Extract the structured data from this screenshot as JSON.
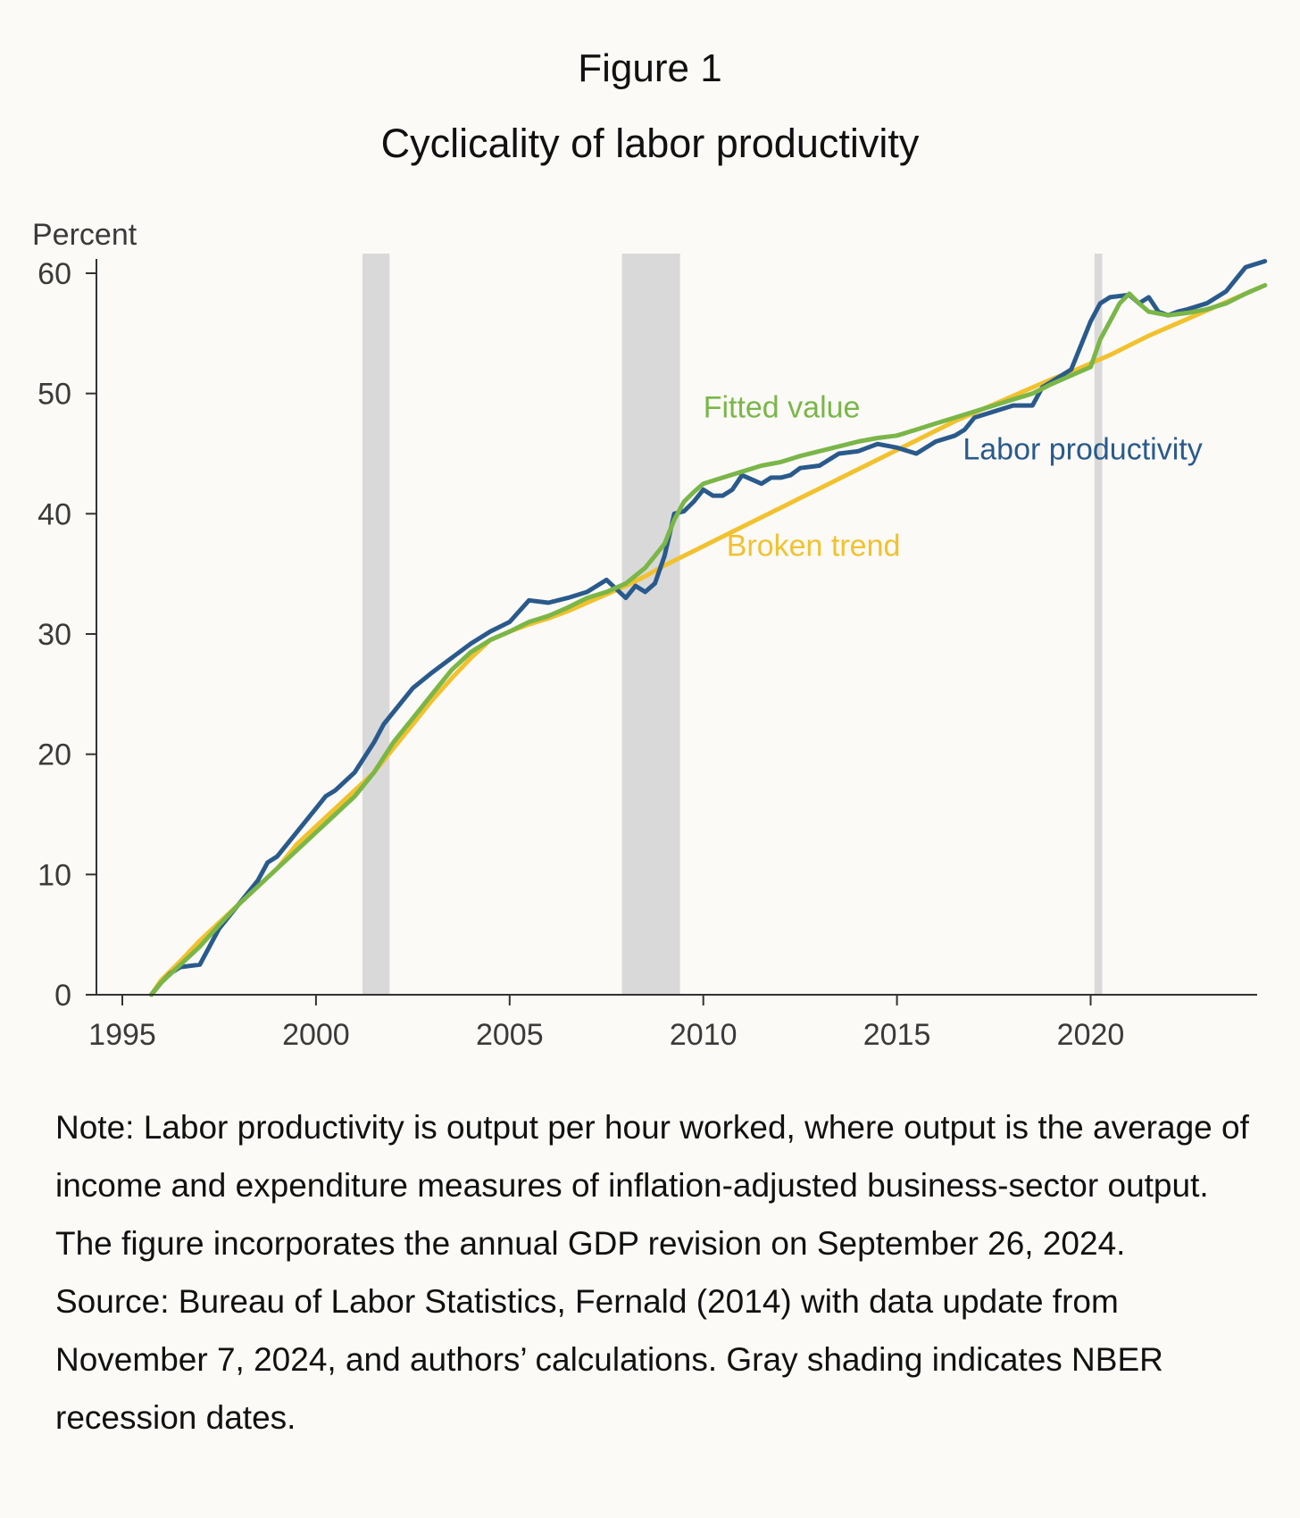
{
  "figure_label": "Figure 1",
  "title": "Cyclicality of labor productivity",
  "note": "Note: Labor productivity is output per hour worked, where output is the average of income and expenditure measures of inflation-adjusted business-sector output. The figure incorporates the annual GDP revision on September 26, 2024.",
  "source": "Source: Bureau of Labor Statistics, Fernald (2014) with data update from November 7, 2024, and authors’ calculations. Gray shading indicates NBER recession dates.",
  "colors": {
    "labor_productivity": "#2a5a8c",
    "fitted_value": "#7ab648",
    "broken_trend": "#f2c12e",
    "recession_shading": "#d9d9d9",
    "axis": "#333333"
  },
  "chart_data": {
    "type": "line",
    "title": "Cyclicality of labor productivity",
    "ylabel": "Percent",
    "xlabel": "",
    "xlim": [
      1995,
      2024.7
    ],
    "ylim": [
      0,
      62
    ],
    "x_ticks": [
      1995,
      2000,
      2005,
      2010,
      2015,
      2020
    ],
    "y_ticks": [
      0,
      10,
      20,
      30,
      40,
      50,
      60
    ],
    "grid": false,
    "legend": "inline labels",
    "recessions": [
      {
        "start": 2001.2,
        "end": 2001.9
      },
      {
        "start": 2007.9,
        "end": 2009.4
      },
      {
        "start": 2020.1,
        "end": 2020.3
      }
    ],
    "series": [
      {
        "name": "Labor productivity",
        "label_anchor": [
          2016.7,
          44.5
        ],
        "x": [
          1995.75,
          1996,
          1996.25,
          1996.5,
          1997,
          1997.25,
          1997.5,
          1998,
          1998.5,
          1998.75,
          1999,
          1999.5,
          2000,
          2000.25,
          2000.5,
          2001,
          2001.5,
          2001.75,
          2002,
          2002.5,
          2003,
          2003.5,
          2004,
          2004.5,
          2005,
          2005.5,
          2006,
          2006.5,
          2007,
          2007.5,
          2008,
          2008.25,
          2008.5,
          2008.75,
          2009,
          2009.25,
          2009.5,
          2009.75,
          2010,
          2010.25,
          2010.5,
          2010.75,
          2011,
          2011.5,
          2011.75,
          2012,
          2012.25,
          2012.5,
          2013,
          2013.5,
          2014,
          2014.5,
          2015,
          2015.5,
          2016,
          2016.5,
          2016.75,
          2017,
          2017.5,
          2018,
          2018.5,
          2018.75,
          2019,
          2019.5,
          2020,
          2020.25,
          2020.5,
          2021,
          2021.25,
          2021.5,
          2021.75,
          2022,
          2022.25,
          2022.5,
          2023,
          2023.5,
          2023.75,
          2024,
          2024.5
        ],
        "y": [
          0,
          1,
          1.8,
          2.3,
          2.5,
          4,
          5.5,
          7.5,
          9.5,
          11,
          11.5,
          13.5,
          15.5,
          16.5,
          17,
          18.5,
          21,
          22.5,
          23.5,
          25.5,
          26.8,
          28,
          29.2,
          30.2,
          31,
          32.8,
          32.6,
          33,
          33.5,
          34.5,
          33,
          34,
          33.5,
          34.2,
          36.5,
          40,
          40.2,
          41,
          42,
          41.5,
          41.5,
          42,
          43.2,
          42.5,
          43,
          43,
          43.2,
          43.8,
          44,
          45,
          45.2,
          45.8,
          45.5,
          45,
          46,
          46.5,
          47,
          48,
          48.5,
          49,
          49,
          50.5,
          51,
          52,
          56,
          57.5,
          58,
          58.2,
          57.5,
          58,
          56.8,
          56.5,
          56.8,
          57,
          57.5,
          58.5,
          59.5,
          60.5,
          61
        ]
      },
      {
        "name": "Fitted value",
        "label_anchor": [
          2010,
          48
        ],
        "x": [
          1995.75,
          1996,
          1996.5,
          1997,
          1997.5,
          1998,
          1998.5,
          1999,
          1999.5,
          2000,
          2000.5,
          2001,
          2001.5,
          2002,
          2002.5,
          2003,
          2003.5,
          2004,
          2004.5,
          2005,
          2005.5,
          2006,
          2006.5,
          2007,
          2007.5,
          2008,
          2008.5,
          2008.75,
          2009,
          2009.25,
          2009.5,
          2009.75,
          2010,
          2010.5,
          2011,
          2011.5,
          2012,
          2012.5,
          2013,
          2013.5,
          2014,
          2014.5,
          2015,
          2015.5,
          2016,
          2016.5,
          2017,
          2017.5,
          2018,
          2018.5,
          2019,
          2019.5,
          2020,
          2020.25,
          2020.5,
          2020.75,
          2021,
          2021.25,
          2021.5,
          2022,
          2022.5,
          2023,
          2023.5,
          2024,
          2024.5
        ],
        "y": [
          0,
          1,
          2.5,
          4,
          5.8,
          7.5,
          9,
          10.5,
          12,
          13.5,
          15,
          16.5,
          18.5,
          21,
          23,
          25,
          27,
          28.5,
          29.5,
          30.2,
          31,
          31.5,
          32.2,
          33,
          33.5,
          34.2,
          35.5,
          36.5,
          37.5,
          39.5,
          41,
          41.8,
          42.5,
          43,
          43.5,
          44,
          44.3,
          44.8,
          45.2,
          45.6,
          46,
          46.3,
          46.5,
          47,
          47.5,
          48,
          48.5,
          49,
          49.5,
          50,
          50.8,
          51.5,
          52.2,
          54.5,
          56,
          57.5,
          58.3,
          57.5,
          56.8,
          56.5,
          56.7,
          57,
          57.5,
          58.3,
          59
        ]
      },
      {
        "name": "Broken trend",
        "label_anchor": [
          2010.6,
          36.5
        ],
        "x": [
          1995.75,
          1996,
          1996.5,
          1997,
          1997.5,
          1998,
          1998.5,
          1999,
          1999.5,
          2000,
          2000.5,
          2001,
          2001.5,
          2002,
          2002.5,
          2003,
          2003.5,
          2004,
          2004.5,
          2005,
          2005.5,
          2006,
          2006.5,
          2007,
          2007.5,
          2008,
          2008.5,
          2009,
          2009.5,
          2010,
          2010.5,
          2011,
          2011.5,
          2012,
          2012.5,
          2013,
          2013.5,
          2014,
          2014.5,
          2015,
          2015.5,
          2016,
          2016.5,
          2017,
          2017.5,
          2018,
          2018.5,
          2019,
          2019.5,
          2020,
          2020.5,
          2021,
          2021.5,
          2022,
          2022.5,
          2023,
          2023.5,
          2024,
          2024.5
        ],
        "y": [
          0,
          1.2,
          2.8,
          4.5,
          6,
          7.5,
          9,
          10.5,
          12.5,
          14,
          15.5,
          17,
          18.5,
          20.5,
          22.5,
          24.5,
          26.3,
          28,
          29.5,
          30.2,
          30.8,
          31.3,
          31.9,
          32.6,
          33.3,
          34,
          34.8,
          35.7,
          36.5,
          37.3,
          38.1,
          38.9,
          39.7,
          40.5,
          41.3,
          42.1,
          42.9,
          43.7,
          44.5,
          45.3,
          46.1,
          46.9,
          47.7,
          48.4,
          49.1,
          49.8,
          50.5,
          51.2,
          51.8,
          52.5,
          53.2,
          54,
          54.8,
          55.5,
          56.2,
          56.9,
          57.6,
          58.3,
          59
        ]
      }
    ]
  }
}
